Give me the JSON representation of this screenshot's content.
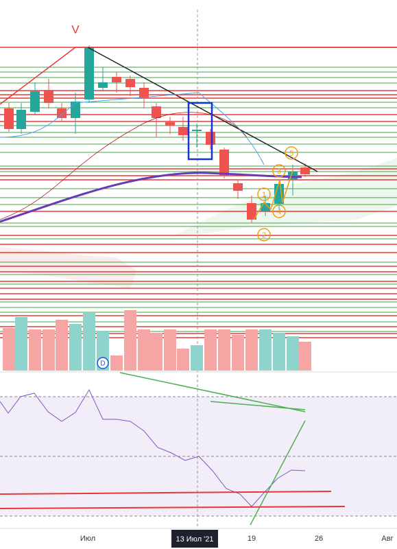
{
  "header": {
    "mark": "V"
  },
  "annotations": {
    "wave_labels": [
      "1",
      "2",
      "3",
      "4",
      "5"
    ],
    "event": "D"
  },
  "time_axis": {
    "labels": [
      "Июл",
      "19",
      "26",
      "Авг"
    ],
    "crosshair": "13 Июл '21"
  }
}
